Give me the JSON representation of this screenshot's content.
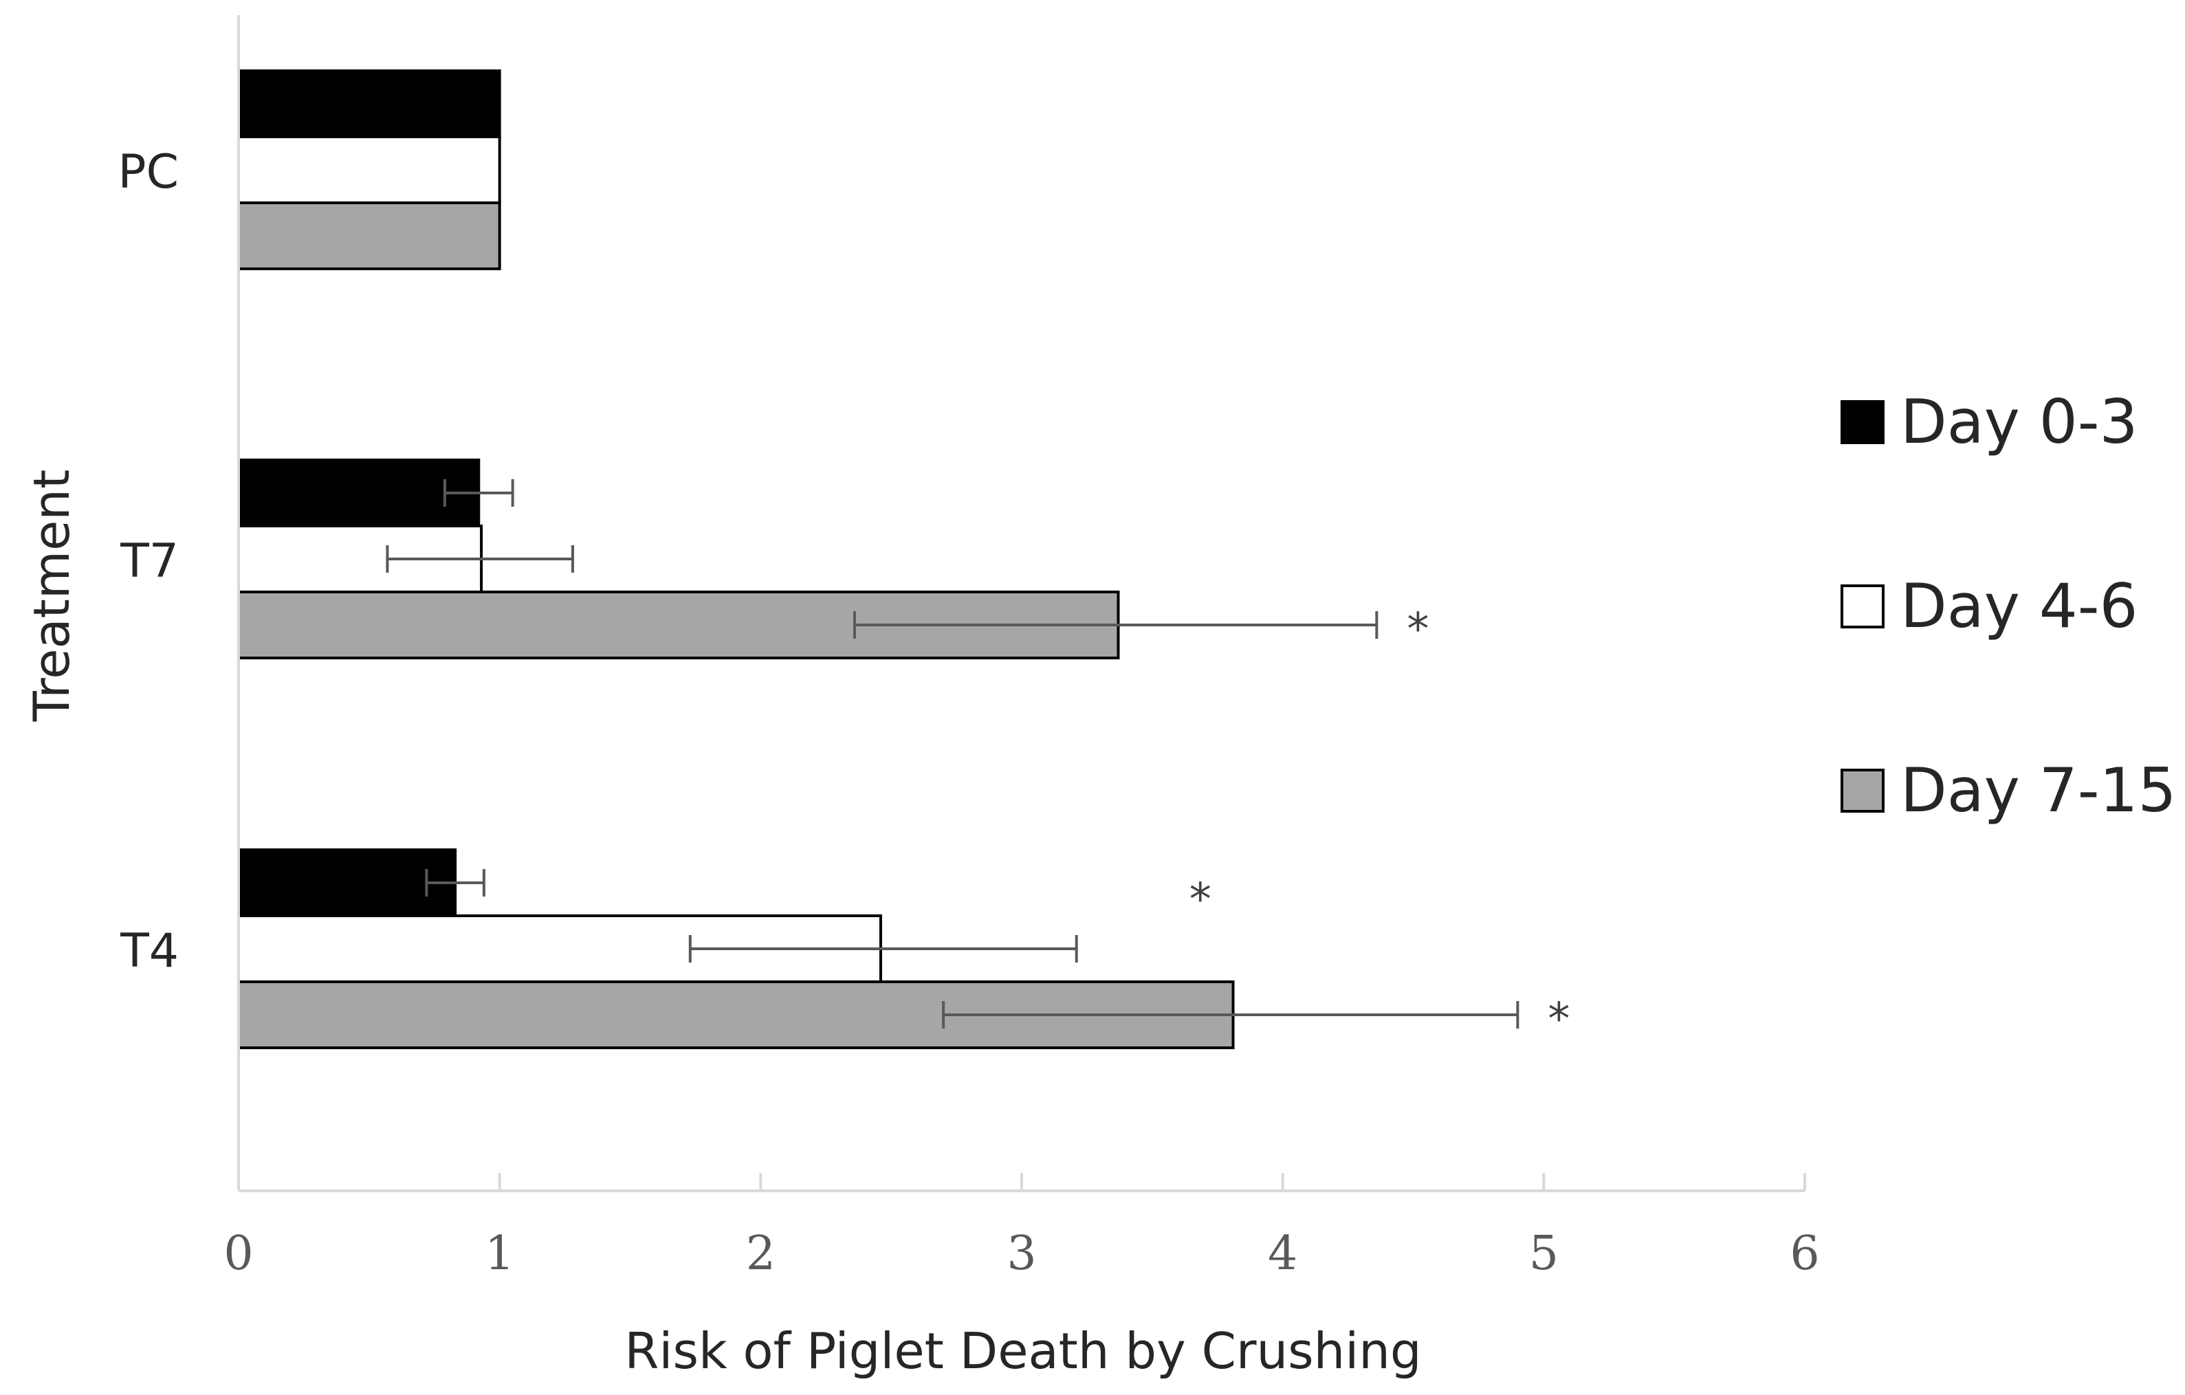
{
  "chart_data": {
    "type": "bar",
    "orientation": "horizontal",
    "title": "",
    "xlabel": "Risk of Piglet Death by Crushing",
    "ylabel": "Treatment",
    "xlim": [
      0,
      6
    ],
    "xticks": [
      "0",
      "1",
      "2",
      "3",
      "4",
      "5",
      "6"
    ],
    "categories": [
      "PC",
      "T7",
      "T4"
    ],
    "legend_position": "right",
    "gridlines": true,
    "series": [
      {
        "name": "Day 0-3",
        "color": "#000000",
        "values": [
          1.0,
          0.92,
          0.83
        ],
        "error_low": [
          null,
          0.79,
          0.72
        ],
        "error_high": [
          null,
          1.05,
          0.94
        ],
        "significance": [
          "",
          "",
          ""
        ]
      },
      {
        "name": "Day 4-6",
        "color": "#ffffff",
        "values": [
          1.0,
          0.93,
          2.46
        ],
        "error_low": [
          null,
          0.57,
          1.73
        ],
        "error_high": [
          null,
          1.28,
          3.21
        ],
        "significance": [
          "",
          "",
          "*"
        ]
      },
      {
        "name": "Day 7-15",
        "color": "#a6a6a6",
        "values": [
          1.0,
          3.37,
          3.81
        ],
        "error_low": [
          null,
          2.36,
          2.7
        ],
        "error_high": [
          null,
          4.36,
          4.9
        ],
        "significance": [
          "",
          "*",
          "*"
        ]
      }
    ]
  }
}
